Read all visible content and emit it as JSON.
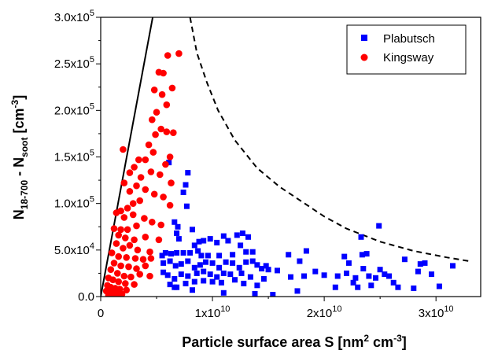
{
  "chart_data": {
    "type": "scatter",
    "xlabel": {
      "main": "Particle surface area S [nm",
      "sup1": "2",
      "mid": " cm",
      "sup2": "-3",
      "end": "]"
    },
    "ylabel": {
      "n1": "N",
      "sub1": "18-700",
      "mid": " - N",
      "sub2": "soot",
      "b1": " [cm",
      "sup": "-3",
      "b2": "]"
    },
    "xlim": [
      0,
      34000000000.0
    ],
    "ylim": [
      0,
      300000
    ],
    "x_ticks": [
      {
        "value": 0,
        "mant": "0",
        "exp": ""
      },
      {
        "value": 10000000000.0,
        "mant": "1x10",
        "exp": "10"
      },
      {
        "value": 20000000000.0,
        "mant": "2x10",
        "exp": "10"
      },
      {
        "value": 30000000000.0,
        "mant": "3x10",
        "exp": "10"
      }
    ],
    "y_ticks": [
      {
        "value": 0,
        "mant": "0.0",
        "exp": ""
      },
      {
        "value": 50000,
        "mant": "5.0x10",
        "exp": "4"
      },
      {
        "value": 100000,
        "mant": "1.0x10",
        "exp": "5"
      },
      {
        "value": 150000,
        "mant": "1.5x10",
        "exp": "5"
      },
      {
        "value": 200000,
        "mant": "2.0x10",
        "exp": "5"
      },
      {
        "value": 250000,
        "mant": "2.5x10",
        "exp": "5"
      },
      {
        "value": 300000,
        "mant": "3.0x10",
        "exp": "5"
      }
    ],
    "grid": false,
    "legend_position": "top-right",
    "series": [
      {
        "name": "Plabutsch",
        "marker": "square",
        "color": "#0000ff",
        "points": [
          [
            6100000000.0,
            144000
          ],
          [
            7800000000.0,
            133000
          ],
          [
            7600000000.0,
            120000
          ],
          [
            7400000000.0,
            112000
          ],
          [
            6600000000.0,
            80000
          ],
          [
            7700000000.0,
            97000
          ],
          [
            6900000000.0,
            75000
          ],
          [
            8200000000.0,
            72000
          ],
          [
            6800000000.0,
            68000
          ],
          [
            7000000000.0,
            62000
          ],
          [
            8400000000.0,
            55000
          ],
          [
            8800000000.0,
            59000
          ],
          [
            9200000000.0,
            60000
          ],
          [
            9800000000.0,
            62000
          ],
          [
            10400000000.0,
            58000
          ],
          [
            11000000000.0,
            65000
          ],
          [
            11400000000.0,
            60000
          ],
          [
            12200000000.0,
            66000
          ],
          [
            12700000000.0,
            68000
          ],
          [
            13200000000.0,
            64000
          ],
          [
            13000000000.0,
            48000
          ],
          [
            12500000000.0,
            55000
          ],
          [
            11800000000.0,
            45000
          ],
          [
            10600000000.0,
            44000
          ],
          [
            9600000000.0,
            44000
          ],
          [
            9000000000.0,
            44000
          ],
          [
            8700000000.0,
            49000
          ],
          [
            8000000000.0,
            47000
          ],
          [
            7400000000.0,
            47000
          ],
          [
            6800000000.0,
            47000
          ],
          [
            6300000000.0,
            46000
          ],
          [
            5800000000.0,
            47000
          ],
          [
            5500000000.0,
            44000
          ],
          [
            5600000000.0,
            36000
          ],
          [
            6200000000.0,
            38000
          ],
          [
            6700000000.0,
            33000
          ],
          [
            7200000000.0,
            35000
          ],
          [
            7800000000.0,
            38000
          ],
          [
            8400000000.0,
            31000
          ],
          [
            8900000000.0,
            34000
          ],
          [
            9400000000.0,
            37000
          ],
          [
            10000000000.0,
            36000
          ],
          [
            10600000000.0,
            31000
          ],
          [
            11200000000.0,
            37000
          ],
          [
            11800000000.0,
            36000
          ],
          [
            12400000000.0,
            31000
          ],
          [
            13000000000.0,
            37000
          ],
          [
            13600000000.0,
            38000
          ],
          [
            14000000000.0,
            34000
          ],
          [
            14400000000.0,
            30000
          ],
          [
            15000000000.0,
            29000
          ],
          [
            15800000000.0,
            28000
          ],
          [
            13400000000.0,
            21000
          ],
          [
            12600000000.0,
            25000
          ],
          [
            11600000000.0,
            24000
          ],
          [
            11000000000.0,
            25000
          ],
          [
            10400000000.0,
            21000
          ],
          [
            9800000000.0,
            24000
          ],
          [
            9200000000.0,
            27000
          ],
          [
            8600000000.0,
            25000
          ],
          [
            7800000000.0,
            22000
          ],
          [
            7200000000.0,
            24000
          ],
          [
            6600000000.0,
            19000
          ],
          [
            6000000000.0,
            23000
          ],
          [
            5600000000.0,
            26000
          ],
          [
            6200000000.0,
            13000
          ],
          [
            6800000000.0,
            10000
          ],
          [
            7600000000.0,
            14000
          ],
          [
            8400000000.0,
            16000
          ],
          [
            9200000000.0,
            17000
          ],
          [
            10000000000.0,
            16000
          ],
          [
            10800000000.0,
            15000
          ],
          [
            12000000000.0,
            18000
          ],
          [
            12800000000.0,
            14000
          ],
          [
            14000000000.0,
            12000
          ],
          [
            14600000000.0,
            19000
          ],
          [
            15400000000.0,
            2000
          ],
          [
            13800000000.0,
            3000
          ],
          [
            11000000000.0,
            4000
          ],
          [
            8200000000.0,
            7000
          ],
          [
            6600000000.0,
            10000
          ],
          [
            16800000000.0,
            45000
          ],
          [
            17800000000.0,
            38000
          ],
          [
            18400000000.0,
            49000
          ],
          [
            18200000000.0,
            22000
          ],
          [
            17600000000.0,
            6000
          ],
          [
            17000000000.0,
            21000
          ],
          [
            19200000000.0,
            27000
          ],
          [
            20000000000.0,
            23000
          ],
          [
            21200000000.0,
            22000
          ],
          [
            21000000000.0,
            10000
          ],
          [
            21800000000.0,
            43000
          ],
          [
            22200000000.0,
            36000
          ],
          [
            22000000000.0,
            25000
          ],
          [
            22600000000.0,
            15000
          ],
          [
            22800000000.0,
            20000
          ],
          [
            23000000000.0,
            10000
          ],
          [
            23300000000.0,
            64000
          ],
          [
            23400000000.0,
            45000
          ],
          [
            23500000000.0,
            30000
          ],
          [
            23800000000.0,
            46000
          ],
          [
            24000000000.0,
            22000
          ],
          [
            24200000000.0,
            12000
          ],
          [
            24600000000.0,
            20000
          ],
          [
            24900000000.0,
            76000
          ],
          [
            25000000000.0,
            29000
          ],
          [
            25400000000.0,
            24000
          ],
          [
            25800000000.0,
            22000
          ],
          [
            26200000000.0,
            15000
          ],
          [
            26600000000.0,
            10000
          ],
          [
            27200000000.0,
            40000
          ],
          [
            28000000000.0,
            9000
          ],
          [
            28400000000.0,
            27000
          ],
          [
            28600000000.0,
            35000
          ],
          [
            29000000000.0,
            36000
          ],
          [
            29600000000.0,
            24000
          ],
          [
            30300000000.0,
            11000
          ],
          [
            31500000000.0,
            33000
          ],
          [
            13600000000.0,
            48000
          ],
          [
            14800000000.0,
            33000
          ]
        ]
      },
      {
        "name": "Kingsway",
        "marker": "circle",
        "color": "#ff0000",
        "points": [
          [
            7000000000.0,
            261000
          ],
          [
            6000000000.0,
            259000
          ],
          [
            5600000000.0,
            240000
          ],
          [
            5200000000.0,
            241000
          ],
          [
            4800000000.0,
            222000
          ],
          [
            5500000000.0,
            217000
          ],
          [
            6400000000.0,
            224000
          ],
          [
            5900000000.0,
            206000
          ],
          [
            5000000000.0,
            198000
          ],
          [
            4600000000.0,
            190000
          ],
          [
            4900000000.0,
            174000
          ],
          [
            5400000000.0,
            180000
          ],
          [
            5900000000.0,
            177000
          ],
          [
            6500000000.0,
            176000
          ],
          [
            4300000000.0,
            163000
          ],
          [
            4700000000.0,
            155000
          ],
          [
            6200000000.0,
            150000
          ],
          [
            5800000000.0,
            142000
          ],
          [
            4000000000.0,
            147000
          ],
          [
            3400000000.0,
            147000
          ],
          [
            4500000000.0,
            134000
          ],
          [
            5300000000.0,
            131000
          ],
          [
            6300000000.0,
            122000
          ],
          [
            3600000000.0,
            128000
          ],
          [
            3000000000.0,
            139000
          ],
          [
            2600000000.0,
            133000
          ],
          [
            2000000000.0,
            158000
          ],
          [
            2100000000.0,
            122000
          ],
          [
            3200000000.0,
            119000
          ],
          [
            2600000000.0,
            113000
          ],
          [
            4000000000.0,
            115000
          ],
          [
            4800000000.0,
            110000
          ],
          [
            5600000000.0,
            107000
          ],
          [
            6200000000.0,
            98000
          ],
          [
            3500000000.0,
            103000
          ],
          [
            2900000000.0,
            100000
          ],
          [
            2400000000.0,
            95000
          ],
          [
            1800000000.0,
            92000
          ],
          [
            1400000000.0,
            90000
          ],
          [
            2100000000.0,
            85000
          ],
          [
            2900000000.0,
            88000
          ],
          [
            3900000000.0,
            84000
          ],
          [
            4600000000.0,
            80000
          ],
          [
            5400000000.0,
            77000
          ],
          [
            3200000000.0,
            76000
          ],
          [
            2400000000.0,
            72000
          ],
          [
            1800000000.0,
            72000
          ],
          [
            1200000000.0,
            73000
          ],
          [
            1600000000.0,
            66000
          ],
          [
            2200000000.0,
            63000
          ],
          [
            3000000000.0,
            61000
          ],
          [
            4000000000.0,
            64000
          ],
          [
            5200000000.0,
            61000
          ],
          [
            1400000000.0,
            57000
          ],
          [
            2000000000.0,
            52000
          ],
          [
            2600000000.0,
            55000
          ],
          [
            3300000000.0,
            50000
          ],
          [
            4400000000.0,
            48000
          ],
          [
            1000000000.0,
            47000
          ],
          [
            1600000000.0,
            43000
          ],
          [
            2300000000.0,
            42000
          ],
          [
            3100000000.0,
            41000
          ],
          [
            3800000000.0,
            40000
          ],
          [
            4500000000.0,
            41000
          ],
          [
            1200000000.0,
            36000
          ],
          [
            1800000000.0,
            33000
          ],
          [
            2500000000.0,
            32000
          ],
          [
            3200000000.0,
            30000
          ],
          [
            4000000000.0,
            33000
          ],
          [
            900000000.0,
            29000
          ],
          [
            1500000000.0,
            25000
          ],
          [
            2100000000.0,
            22000
          ],
          [
            2700000000.0,
            21000
          ],
          [
            3500000000.0,
            24000
          ],
          [
            4400000000.0,
            22000
          ],
          [
            700000000.0,
            20000
          ],
          [
            1100000000.0,
            18000
          ],
          [
            1600000000.0,
            16000
          ],
          [
            2200000000.0,
            14000
          ],
          [
            3000000000.0,
            13000
          ],
          [
            600000000.0,
            12000
          ],
          [
            900000000.0,
            10000
          ],
          [
            1300000000.0,
            9000
          ],
          [
            1700000000.0,
            8000
          ],
          [
            2300000000.0,
            7000
          ],
          [
            500000000.0,
            6000
          ],
          [
            800000000.0,
            5000
          ],
          [
            1100000000.0,
            4000
          ],
          [
            1500000000.0,
            3000
          ],
          [
            1900000000.0,
            2500
          ],
          [
            700000000.0,
            1500
          ],
          [
            1000000000.0,
            1000
          ],
          [
            1300000000.0,
            500
          ],
          [
            1700000000.0,
            8000
          ]
        ]
      }
    ],
    "lines": [
      {
        "style": "solid",
        "color": "#000000",
        "points": [
          [
            0,
            0
          ],
          [
            4650000000.0,
            300000
          ]
        ]
      },
      {
        "style": "dashed",
        "color": "#000000",
        "points": [
          [
            8000000000.0,
            300000
          ],
          [
            8600000000.0,
            262000
          ],
          [
            9500000000.0,
            230000
          ],
          [
            10500000000.0,
            200000
          ],
          [
            12000000000.0,
            168000
          ],
          [
            14000000000.0,
            138000
          ],
          [
            16000000000.0,
            118000
          ],
          [
            18000000000.0,
            102000
          ],
          [
            20000000000.0,
            86000
          ],
          [
            22000000000.0,
            73000
          ],
          [
            25000000000.0,
            59000
          ],
          [
            28000000000.0,
            49000
          ],
          [
            31000000000.0,
            42000
          ],
          [
            33000000000.0,
            38000
          ]
        ]
      }
    ]
  }
}
